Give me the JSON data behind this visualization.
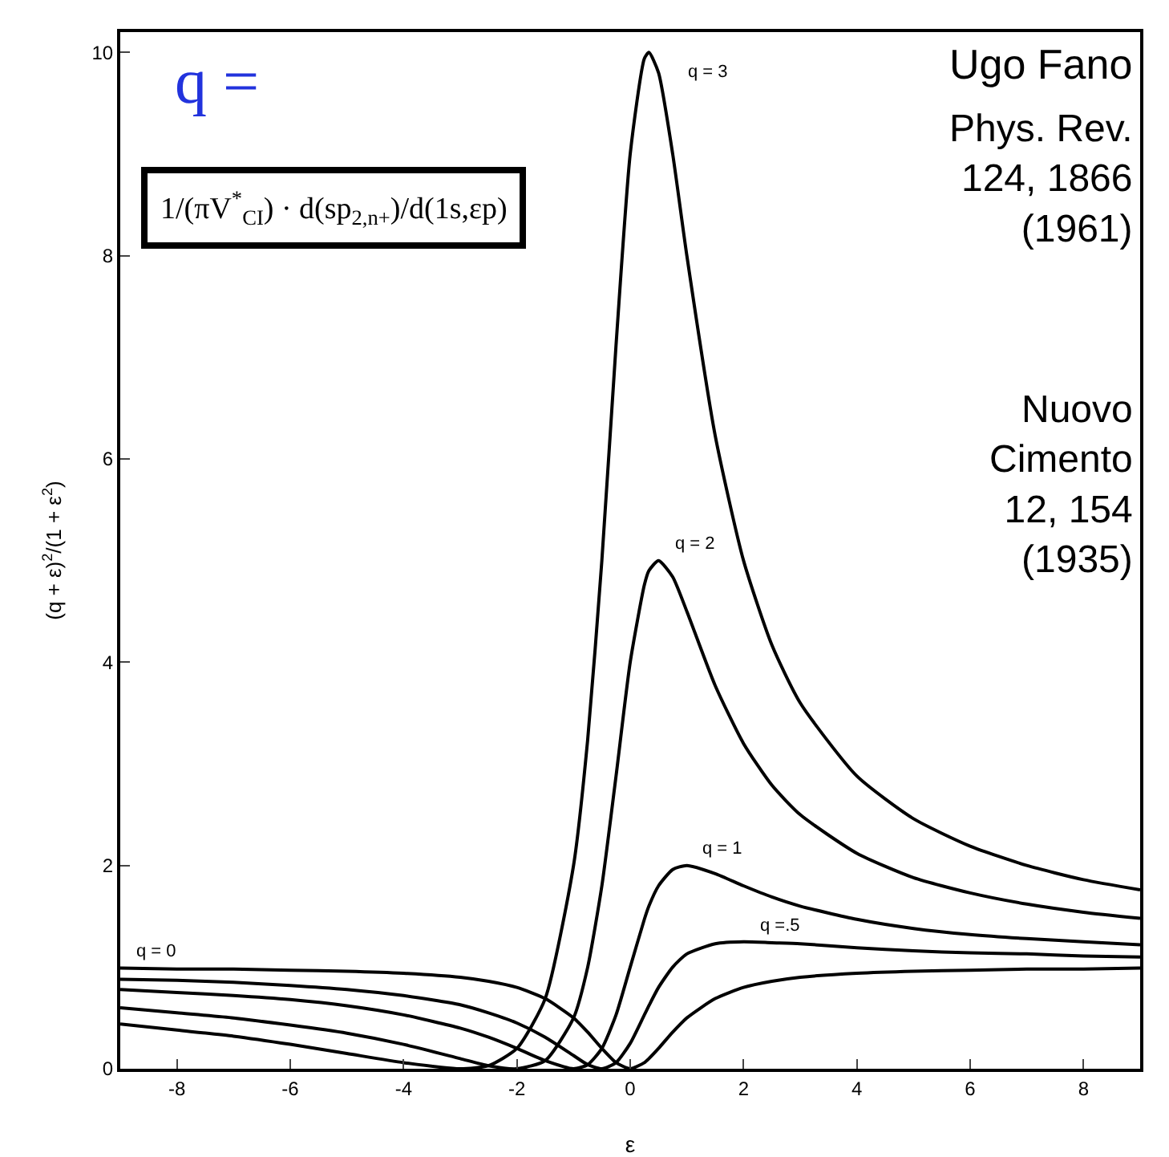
{
  "chart_data": {
    "type": "line",
    "xlabel": "ε",
    "ylabel": "(q + ε)$^{2}$/(1 + ε$^{2}$)",
    "x": [
      -9,
      -8,
      -7,
      -6,
      -5,
      -4,
      -3,
      -2.5,
      -2,
      -1.5,
      -1,
      -0.75,
      -0.5,
      -0.25,
      0,
      0.25,
      0.33,
      0.5,
      0.75,
      1,
      1.5,
      2,
      2.5,
      3,
      4,
      5,
      6,
      7,
      8,
      9
    ],
    "series": [
      {
        "name": "q = 3",
        "color": "#000000",
        "values": [
          0.44,
          0.38,
          0.32,
          0.24,
          0.15,
          0.06,
          0,
          0.03,
          0.2,
          0.69,
          2,
          3.24,
          5,
          7.12,
          9,
          9.94,
          10,
          9.8,
          9,
          8,
          6.23,
          5,
          4.17,
          3.6,
          2.88,
          2.46,
          2.19,
          2,
          1.86,
          1.76
        ]
      },
      {
        "name": "q = 2",
        "color": "#000000",
        "values": [
          0.6,
          0.55,
          0.5,
          0.43,
          0.35,
          0.24,
          0.1,
          0.03,
          0,
          0.08,
          0.5,
          1,
          1.8,
          2.88,
          4,
          4.76,
          4.9,
          5,
          4.84,
          4.5,
          3.77,
          3.2,
          2.79,
          2.5,
          2.12,
          1.88,
          1.73,
          1.62,
          1.54,
          1.48
        ]
      },
      {
        "name": "q = 1",
        "color": "#000000",
        "values": [
          0.78,
          0.75,
          0.72,
          0.68,
          0.62,
          0.53,
          0.4,
          0.31,
          0.2,
          0.08,
          0,
          0.04,
          0.2,
          0.53,
          1,
          1.47,
          1.6,
          1.8,
          1.96,
          2,
          1.92,
          1.8,
          1.69,
          1.6,
          1.47,
          1.38,
          1.32,
          1.28,
          1.25,
          1.22
        ]
      },
      {
        "name": "q =.5",
        "color": "#000000",
        "values": [
          0.88,
          0.87,
          0.85,
          0.82,
          0.78,
          0.72,
          0.63,
          0.55,
          0.45,
          0.31,
          0.13,
          0.04,
          0,
          0.06,
          0.25,
          0.53,
          0.62,
          0.8,
          1,
          1.13,
          1.23,
          1.25,
          1.24,
          1.23,
          1.19,
          1.16,
          1.14,
          1.13,
          1.11,
          1.1
        ]
      },
      {
        "name": "q = 0",
        "color": "#000000",
        "values": [
          0.99,
          0.98,
          0.98,
          0.97,
          0.96,
          0.94,
          0.9,
          0.86,
          0.8,
          0.69,
          0.5,
          0.36,
          0.2,
          0.06,
          0,
          0.06,
          0.1,
          0.2,
          0.36,
          0.5,
          0.69,
          0.8,
          0.86,
          0.9,
          0.94,
          0.96,
          0.97,
          0.98,
          0.98,
          0.99
        ]
      }
    ],
    "xlim": [
      -9,
      9
    ],
    "xticks": [
      -8,
      -6,
      -4,
      -2,
      0,
      2,
      4,
      6,
      8
    ],
    "ylim": [
      0,
      10.2
    ],
    "yticks": [
      0,
      2,
      4,
      6,
      8,
      10
    ],
    "grid": false,
    "legend": false,
    "marker": "none",
    "line_style": "solid",
    "annotations": [
      "q =",
      "1/(πV$^{*}$$_{CI}$) · d(sp$_{2,n+}$)/d(1s,εp)",
      "Ugo Fano",
      "Phys. Rev.\n124, 1866\n(1961)",
      "Nuovo\nCimento\n12, 154\n(1935)"
    ]
  }
}
